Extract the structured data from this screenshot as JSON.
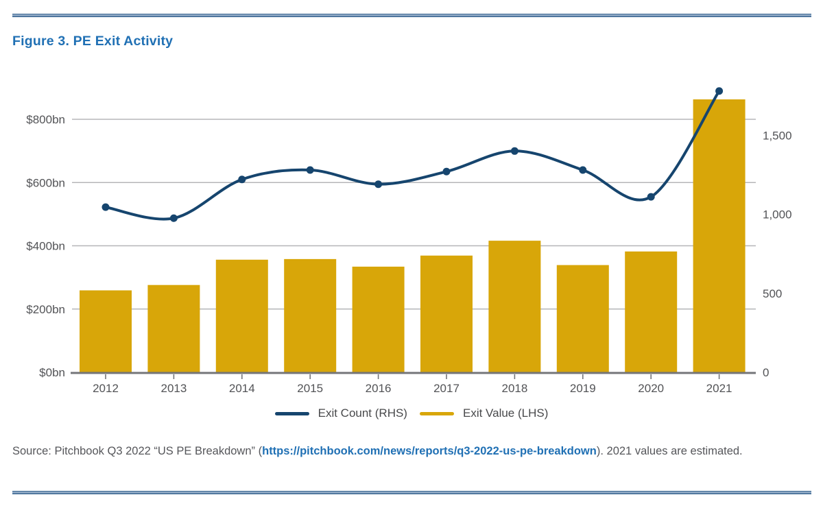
{
  "figure": {
    "title": "Figure 3. PE Exit Activity"
  },
  "chart_data": {
    "type": "combo-bar-line",
    "categories": [
      "2012",
      "2013",
      "2014",
      "2015",
      "2016",
      "2017",
      "2018",
      "2019",
      "2020",
      "2021"
    ],
    "series": [
      {
        "name": "Exit Value (LHS)",
        "type": "bar",
        "axis": "left",
        "unit": "$bn",
        "color": "#d8a609",
        "values": [
          259,
          276,
          356,
          358,
          334,
          369,
          416,
          339,
          382,
          863
        ]
      },
      {
        "name": "Exit Count (RHS)",
        "type": "line",
        "axis": "right",
        "color": "#16456e",
        "values": [
          1045,
          975,
          1220,
          1280,
          1190,
          1270,
          1400,
          1280,
          1110,
          1780
        ]
      }
    ],
    "left_axis": {
      "title": "",
      "ticks": [
        {
          "value": 0,
          "label": "$0bn"
        },
        {
          "value": 200,
          "label": "$200bn"
        },
        {
          "value": 400,
          "label": "$400bn"
        },
        {
          "value": 600,
          "label": "$600bn"
        },
        {
          "value": 800,
          "label": "$800bn"
        }
      ],
      "ylim": [
        0,
        940
      ]
    },
    "right_axis": {
      "title": "",
      "ticks": [
        {
          "value": 0,
          "label": "0"
        },
        {
          "value": 500,
          "label": "500"
        },
        {
          "value": 1000,
          "label": "1,000"
        },
        {
          "value": 1500,
          "label": "1,500"
        }
      ],
      "ylim": [
        0,
        1880
      ]
    },
    "grid": true,
    "legend_position": "bottom-center",
    "legend": [
      {
        "label": "Exit Count (RHS)",
        "color": "#16456e"
      },
      {
        "label": "Exit Value (LHS)",
        "color": "#d8a609"
      }
    ]
  },
  "source": {
    "prefix": "Source: Pitchbook Q3 2022 “US PE Breakdown” (",
    "link_text": "https://pitchbook.com/news/reports/q3-2022-us-pe-breakdown",
    "suffix": "). 2021 values are estimated."
  },
  "colors": {
    "title_blue": "#2070b4",
    "link_blue": "#2070b4",
    "bar_gold": "#d8a609",
    "line_navy": "#16456e",
    "rule_blue": "#3a6690",
    "grid_gray": "#b5b6b8",
    "axis_gray": "#747578",
    "tick_label_gray": "#525356",
    "source_text_gray": "#55565a"
  }
}
